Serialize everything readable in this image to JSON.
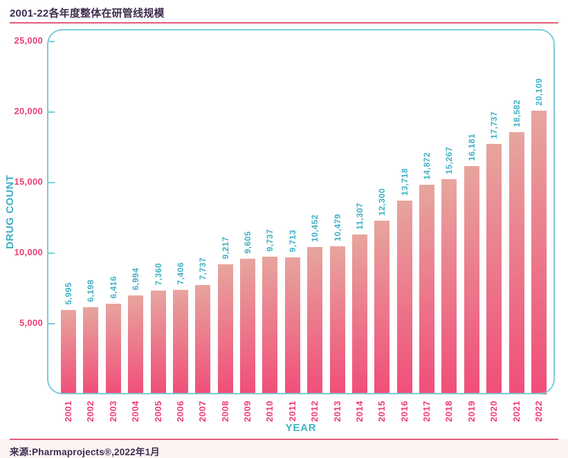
{
  "header": {
    "title": "2001-22各年度整体在研管线规模"
  },
  "footer": {
    "source": "来源:Pharmaprojects®,2022年1月"
  },
  "colors": {
    "title_text": "#3e2c4f",
    "divider_pink": "#e25c7c",
    "axis_border_teal": "#7accd8",
    "tick_label_pink": "#ee3e71",
    "teal_label": "#3fb0c5",
    "bar_top": "#e7a59e",
    "bar_bottom": "#f04e79"
  },
  "chart_data": {
    "type": "bar",
    "title": "2001-22各年度整体在研管线规模",
    "xlabel": "YEAR",
    "ylabel": "DRUG COUNT",
    "categories": [
      "2001",
      "2002",
      "2003",
      "2004",
      "2005",
      "2006",
      "2007",
      "2008",
      "2009",
      "2010",
      "2011",
      "2012",
      "2013",
      "2014",
      "2015",
      "2016",
      "2017",
      "2018",
      "2019",
      "2020",
      "2021",
      "2022"
    ],
    "values": [
      5995,
      6198,
      6416,
      6994,
      7360,
      7406,
      7737,
      9217,
      9605,
      9737,
      9713,
      10452,
      10479,
      11307,
      12300,
      13718,
      14872,
      15267,
      16181,
      17737,
      18582,
      20109
    ],
    "value_labels": [
      "5,995",
      "6,198",
      "6,416",
      "6,994",
      "7,360",
      "7,406",
      "7,737",
      "9,217",
      "9,605",
      "9,737",
      "9,713",
      "10,452",
      "10,479",
      "11,307",
      "12,300",
      "13,718",
      "14,872",
      "15,267",
      "16,181",
      "17,737",
      "18,582",
      "20,109"
    ],
    "y_ticks": [
      5000,
      10000,
      15000,
      20000,
      25000
    ],
    "y_tick_labels": [
      "5,000",
      "10,000",
      "15,000",
      "20,000",
      "25,000"
    ],
    "ylim": [
      0,
      26000
    ],
    "grid": false,
    "legend": null,
    "bar_label_rotation": "vertical-bottom-to-top",
    "x_tick_rotation": "vertical-bottom-to-top"
  }
}
